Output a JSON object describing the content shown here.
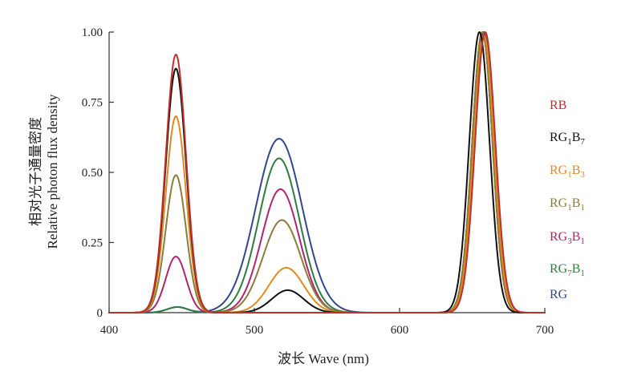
{
  "chart_data": {
    "type": "line",
    "title": "",
    "xlabel": "波长 Wave (nm)",
    "ylabel": "相对光子通量密度",
    "ylabel_en": "Relative photon flux density",
    "xlim": [
      400,
      700
    ],
    "ylim": [
      0,
      1.0
    ],
    "x_ticks": [
      400,
      500,
      600,
      700
    ],
    "y_ticks": [
      "0",
      "0.25",
      "0.50",
      "0.75",
      "1.00"
    ],
    "y_tick_values": [
      0,
      0.25,
      0.5,
      0.75,
      1.0
    ],
    "grid": false,
    "legend_position": "right",
    "series": [
      {
        "name": "RG",
        "legend": [
          {
            "t": "RG",
            "sub": false
          }
        ],
        "color": "#34478c",
        "blue": {
          "center": 447,
          "amp": 0.02,
          "width": 7
        },
        "green": {
          "center": 517,
          "amp": 0.62,
          "width": 16
        },
        "red": {
          "center": 658,
          "amp": 1.0,
          "width": 7
        }
      },
      {
        "name": "RG7B1",
        "legend": [
          {
            "t": "RG",
            "sub": false
          },
          {
            "t": "7",
            "sub": true
          },
          {
            "t": "B",
            "sub": false
          },
          {
            "t": "1",
            "sub": true
          }
        ],
        "color": "#2e7d3e",
        "blue": {
          "center": 447,
          "amp": 0.02,
          "width": 7
        },
        "green": {
          "center": 517,
          "amp": 0.55,
          "width": 14
        },
        "red": {
          "center": 657,
          "amp": 1.0,
          "width": 7
        }
      },
      {
        "name": "RG3B1",
        "legend": [
          {
            "t": "RG",
            "sub": false
          },
          {
            "t": "3",
            "sub": true
          },
          {
            "t": "B",
            "sub": false
          },
          {
            "t": "1",
            "sub": true
          }
        ],
        "color": "#b2256c",
        "blue": {
          "center": 446,
          "amp": 0.2,
          "width": 7
        },
        "green": {
          "center": 518,
          "amp": 0.44,
          "width": 13
        },
        "red": {
          "center": 657,
          "amp": 1.0,
          "width": 7
        }
      },
      {
        "name": "RG1B1",
        "legend": [
          {
            "t": "RG",
            "sub": false
          },
          {
            "t": "1",
            "sub": true
          },
          {
            "t": "B",
            "sub": false
          },
          {
            "t": "1",
            "sub": true
          }
        ],
        "color": "#8a7d3a",
        "blue": {
          "center": 446,
          "amp": 0.49,
          "width": 7
        },
        "green": {
          "center": 519,
          "amp": 0.33,
          "width": 13
        },
        "red": {
          "center": 657,
          "amp": 1.0,
          "width": 7
        }
      },
      {
        "name": "RG1B3",
        "legend": [
          {
            "t": "RG",
            "sub": false
          },
          {
            "t": "1",
            "sub": true
          },
          {
            "t": "B",
            "sub": false
          },
          {
            "t": "3",
            "sub": true
          }
        ],
        "color": "#e08a22",
        "blue": {
          "center": 446,
          "amp": 0.7,
          "width": 7
        },
        "green": {
          "center": 522,
          "amp": 0.16,
          "width": 12
        },
        "red": {
          "center": 658,
          "amp": 0.99,
          "width": 7
        }
      },
      {
        "name": "RG1B7",
        "legend": [
          {
            "t": "RG",
            "sub": false
          },
          {
            "t": "1",
            "sub": true
          },
          {
            "t": "B",
            "sub": false
          },
          {
            "t": "7",
            "sub": true
          }
        ],
        "color": "#111111",
        "blue": {
          "center": 446,
          "amp": 0.87,
          "width": 7
        },
        "green": {
          "center": 523,
          "amp": 0.08,
          "width": 11
        },
        "red": {
          "center": 655,
          "amp": 1.0,
          "width": 7
        }
      },
      {
        "name": "RB",
        "legend": [
          {
            "t": "RB",
            "sub": false
          }
        ],
        "color": "#c0302c",
        "blue": {
          "center": 446,
          "amp": 0.92,
          "width": 7
        },
        "green": {
          "center": 520,
          "amp": 0.0,
          "width": 12
        },
        "red": {
          "center": 659,
          "amp": 1.0,
          "width": 7
        }
      }
    ]
  }
}
